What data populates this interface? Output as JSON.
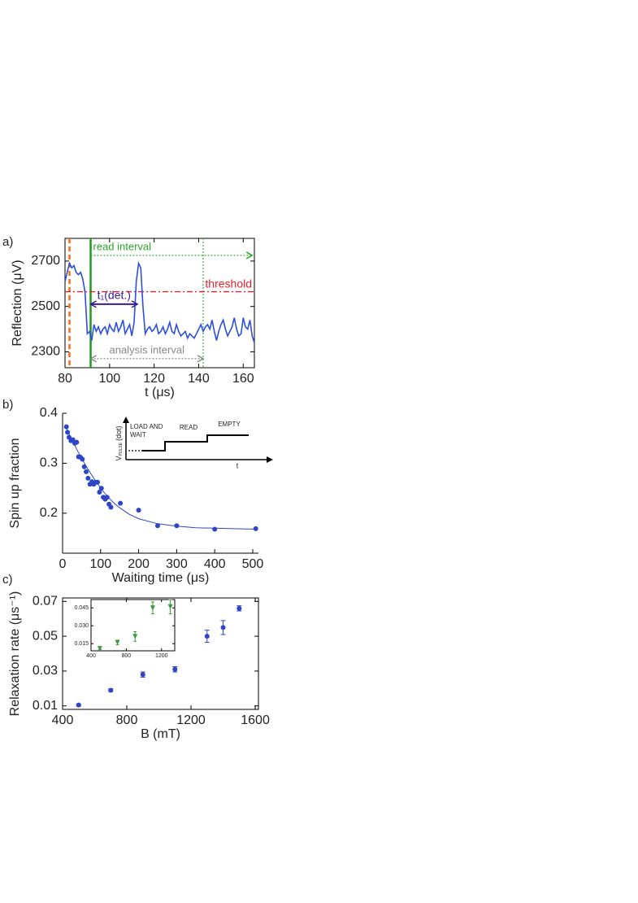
{
  "chart_data": [
    {
      "type": "line",
      "panel": "a)",
      "xlabel": "t (μs)",
      "ylabel": "Reflection (μV)",
      "frame": true,
      "xlim": [
        80,
        165
      ],
      "xticks": [
        80,
        100,
        120,
        140,
        160
      ],
      "ylim": [
        2230,
        2800
      ],
      "yticks": [
        2300,
        2500,
        2700
      ],
      "color": "#2d4fe0",
      "x": [
        80,
        81,
        82,
        83,
        84,
        85,
        86,
        87,
        88,
        89,
        90,
        91,
        92,
        93,
        94,
        95,
        96,
        97,
        98,
        99,
        100,
        101,
        102,
        103,
        104,
        105,
        106,
        107,
        108,
        109,
        110,
        111,
        112,
        113,
        114,
        115,
        116,
        117,
        118,
        119,
        120,
        121,
        122,
        123,
        124,
        125,
        126,
        127,
        128,
        129,
        130,
        131,
        132,
        133,
        134,
        135,
        136,
        137,
        138,
        139,
        140,
        141,
        142,
        143,
        144,
        145,
        146,
        147,
        148,
        149,
        150,
        151,
        152,
        153,
        154,
        155,
        156,
        157,
        158,
        159,
        160,
        161,
        162,
        163,
        164,
        165
      ],
      "values": [
        2610,
        2650,
        2690,
        2670,
        2680,
        2650,
        2640,
        2650,
        2620,
        2560,
        2380,
        2390,
        2350,
        2420,
        2390,
        2410,
        2380,
        2400,
        2410,
        2380,
        2420,
        2400,
        2390,
        2430,
        2390,
        2410,
        2440,
        2380,
        2400,
        2420,
        2370,
        2430,
        2610,
        2690,
        2670,
        2500,
        2380,
        2400,
        2410,
        2390,
        2400,
        2420,
        2380,
        2390,
        2410,
        2380,
        2400,
        2430,
        2390,
        2380,
        2420,
        2390,
        2370,
        2380,
        2390,
        2360,
        2380,
        2370,
        2360,
        2380,
        2400,
        2420,
        2390,
        2410,
        2420,
        2400,
        2440,
        2390,
        2350,
        2390,
        2420,
        2440,
        2400,
        2370,
        2390,
        2410,
        2450,
        2400,
        2370,
        2380,
        2450,
        2410,
        2400,
        2440,
        2370,
        2340
      ],
      "vlines": [
        {
          "x": 82,
          "color": "#ff6a13",
          "dash": "dashed"
        },
        {
          "x": 91.5,
          "color": "#1f9a1f",
          "dash": "solid"
        },
        {
          "x": 142,
          "color": "#33bb33",
          "dash": "dotted"
        }
      ],
      "hlines": [
        {
          "y": 2565,
          "color": "#e8202a",
          "dash": "dashdot",
          "label": "threshold"
        }
      ],
      "annotations": [
        {
          "text": "read interval",
          "x1": 91.5,
          "x2": 164,
          "y": 2725,
          "color": "#2aa82a",
          "dash": "dotted",
          "align": "start"
        },
        {
          "text": "t₁(det.)",
          "x1": 91.5,
          "x2": 112.5,
          "y": 2510,
          "color": "#3a1a9a",
          "dash": "solid",
          "align": "middle"
        },
        {
          "text": "analysis interval",
          "x1": 91.5,
          "x2": 142,
          "y": 2270,
          "color": "#888888",
          "dash": "dotted",
          "align": "middle"
        }
      ]
    },
    {
      "type": "scatter",
      "panel": "b)",
      "xlabel": "Waiting time (μs)",
      "ylabel": "Spin up fraction",
      "frame": false,
      "xlim": [
        0,
        515
      ],
      "xticks": [
        0,
        100,
        200,
        300,
        400,
        500
      ],
      "ylim": [
        0.12,
        0.4
      ],
      "yticks": [
        0.2,
        0.3,
        0.4
      ],
      "color": "#2f45c8",
      "x": [
        10,
        13,
        17,
        22,
        27,
        32,
        37,
        42,
        47,
        52,
        57,
        62,
        67,
        72,
        77,
        82,
        87,
        92,
        97,
        102,
        107,
        112,
        117,
        122,
        127,
        152,
        200,
        250,
        300,
        400,
        508
      ],
      "values": [
        0.373,
        0.362,
        0.352,
        0.345,
        0.347,
        0.34,
        0.342,
        0.313,
        0.312,
        0.308,
        0.293,
        0.283,
        0.27,
        0.258,
        0.263,
        0.258,
        0.262,
        0.262,
        0.242,
        0.25,
        0.232,
        0.228,
        0.232,
        0.218,
        0.212,
        0.22,
        0.206,
        0.175,
        0.175,
        0.168,
        0.169
      ],
      "fit": {
        "x": [
          10,
          20,
          30,
          40,
          50,
          62,
          75,
          87,
          100,
          112,
          125,
          137,
          150,
          175,
          200,
          250,
          300,
          350,
          400,
          450,
          510
        ],
        "values": [
          0.37,
          0.354,
          0.339,
          0.324,
          0.31,
          0.294,
          0.278,
          0.264,
          0.25,
          0.239,
          0.228,
          0.219,
          0.211,
          0.198,
          0.189,
          0.179,
          0.174,
          0.171,
          0.17,
          0.169,
          0.168
        ]
      },
      "pulse_diagram": {
        "symbol": "V",
        "subscript": "PULSE",
        "unit": "(dot)",
        "time": "t",
        "stages": [
          "LOAD AND WAIT",
          "READ",
          "EMPTY"
        ]
      }
    },
    {
      "type": "errorbar",
      "panel": "c)",
      "xlabel": "B (mT)",
      "ylabel": "Relaxation rate (μs⁻¹)",
      "frame": true,
      "marker": "circle",
      "xlim": [
        400,
        1620
      ],
      "xticks": [
        400,
        800,
        1200,
        1600
      ],
      "ylim": [
        0.008,
        0.072
      ],
      "yticks": [
        0.01,
        0.03,
        0.05,
        0.07
      ],
      "color": "#2f45c8",
      "x": [
        500,
        700,
        900,
        1100,
        1300,
        1400,
        1500
      ],
      "values": [
        0.0105,
        0.019,
        0.028,
        0.031,
        0.05,
        0.055,
        0.066
      ],
      "errors": [
        0.0005,
        0.0008,
        0.0015,
        0.0015,
        0.0035,
        0.004,
        0.0015
      ]
    },
    {
      "type": "errorbar",
      "frame": true,
      "marker": "triangle",
      "xlim": [
        400,
        1350
      ],
      "xticks": [
        400,
        800,
        1200
      ],
      "ylim": [
        0.009,
        0.052
      ],
      "yticks": [
        0.015,
        {
          "value": 0.03,
          "label": "0.030"
        },
        0.045
      ],
      "color": "#3a9a3a",
      "x": [
        500,
        700,
        900,
        1100,
        1300
      ],
      "values": [
        0.011,
        0.016,
        0.021,
        0.045,
        0.046
      ],
      "errors": [
        0.001,
        0.002,
        0.004,
        0.005,
        0.006
      ]
    }
  ]
}
